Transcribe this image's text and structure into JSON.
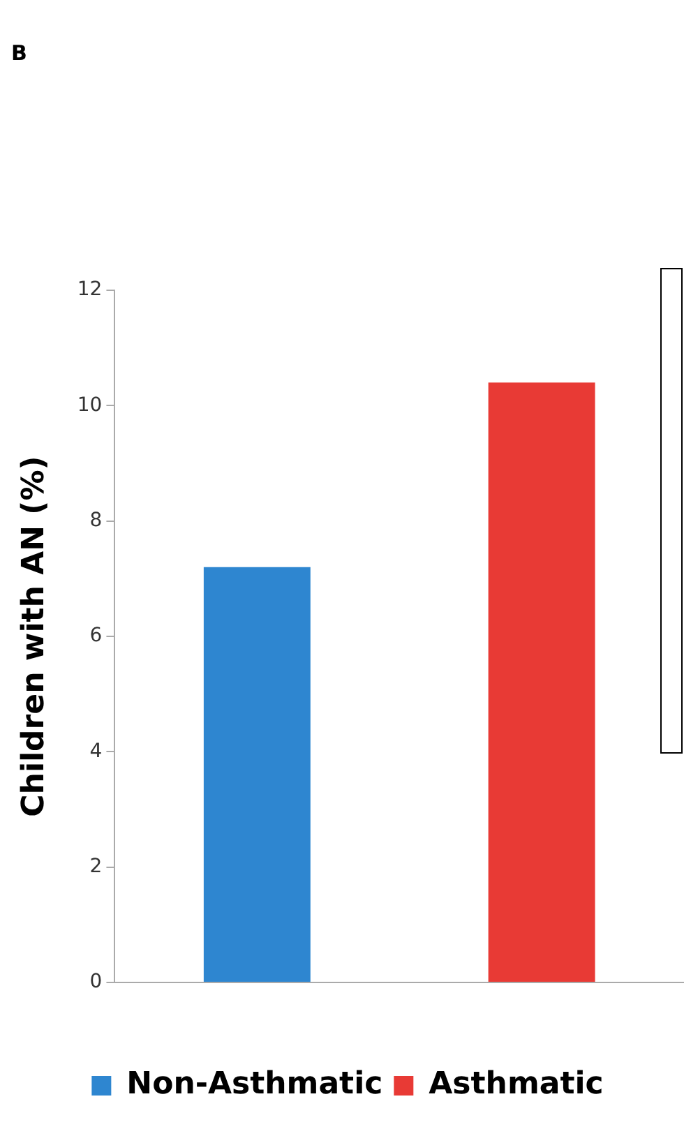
{
  "chart_data": {
    "type": "bar",
    "title": "B",
    "ylabel": "Children with AN (%)",
    "categories": [
      null,
      null
    ],
    "series": [
      {
        "name": "Non-Asthmatic",
        "color": "#2e86d0",
        "values": [
          7.2,
          null
        ]
      },
      {
        "name": "Asthmatic",
        "color": "#e83a35",
        "values": [
          null,
          10.4
        ]
      }
    ],
    "ylim": [
      0,
      12
    ],
    "yticks": [
      0,
      2,
      4,
      6,
      8,
      10,
      12
    ],
    "grid": false,
    "legend": "bottom"
  }
}
